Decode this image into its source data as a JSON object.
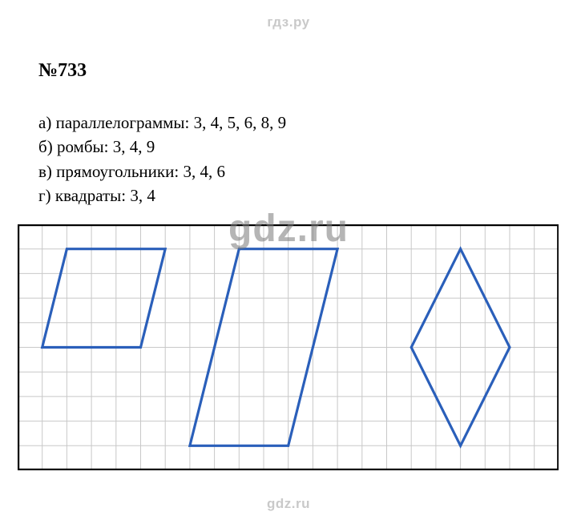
{
  "watermark": {
    "header": "гдз.ру",
    "center": "gdz.ru",
    "footer": "gdz.ru"
  },
  "problem": {
    "number": "№733"
  },
  "answers": [
    {
      "letter": "а",
      "category": "параллелограммы",
      "values": "3, 4, 5, 6, 8, 9"
    },
    {
      "letter": "б",
      "category": "ромбы",
      "values": "3, 4, 9"
    },
    {
      "letter": "в",
      "category": "прямоугольники",
      "values": "3, 4, 6"
    },
    {
      "letter": "г",
      "category": "квадраты",
      "values": "3, 4"
    }
  ],
  "grid": {
    "cols": 22,
    "rows": 10,
    "cell_size": 30.7,
    "grid_color": "#c8c8c8",
    "grid_stroke": 1,
    "border_color": "#000000",
    "border_stroke": 2.2,
    "background": "#ffffff"
  },
  "shapes": {
    "stroke_color": "#2a5fba",
    "stroke_width": 3.2,
    "fill": "none",
    "parallelogram": {
      "points": [
        [
          2,
          1
        ],
        [
          6,
          1
        ],
        [
          5,
          5
        ],
        [
          1,
          5
        ]
      ]
    },
    "slanted_parallelogram": {
      "points": [
        [
          9,
          1
        ],
        [
          13,
          1
        ],
        [
          11,
          9
        ],
        [
          7,
          9
        ]
      ]
    },
    "rhombus": {
      "points": [
        [
          18,
          1
        ],
        [
          20,
          5
        ],
        [
          18,
          9
        ],
        [
          16,
          5
        ]
      ]
    }
  }
}
